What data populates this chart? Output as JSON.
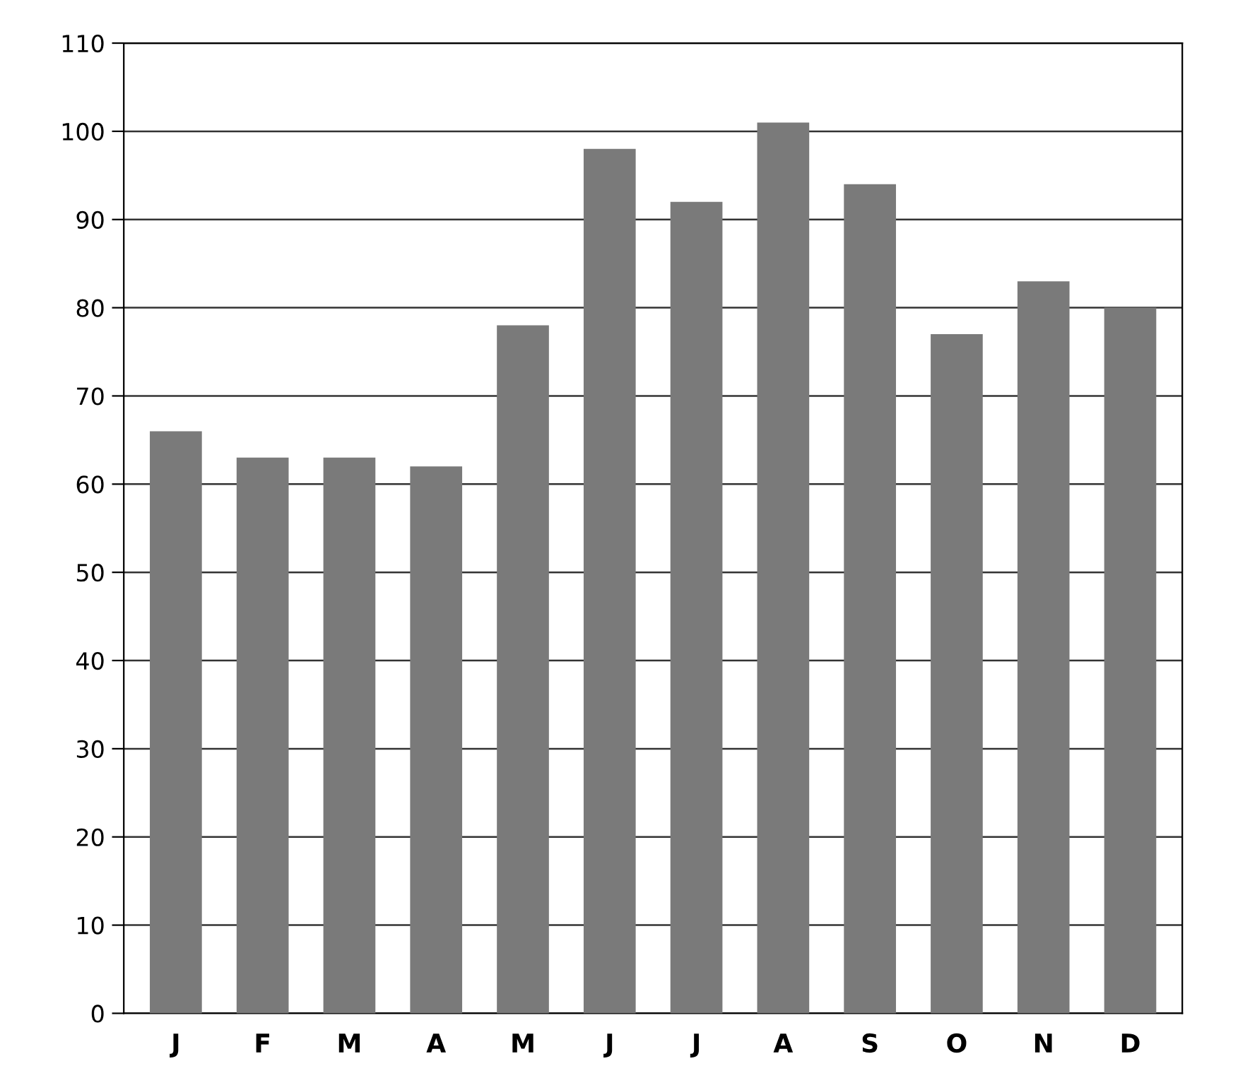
{
  "chart_data": {
    "type": "bar",
    "categories": [
      "J",
      "F",
      "M",
      "A",
      "M",
      "J",
      "J",
      "A",
      "S",
      "O",
      "N",
      "D"
    ],
    "values": [
      66,
      63,
      63,
      62,
      78,
      98,
      92,
      101,
      94,
      77,
      83,
      80
    ],
    "color": "#7a7a7a",
    "ylim": [
      0,
      110
    ],
    "yticks": [
      0,
      10,
      20,
      30,
      40,
      50,
      60,
      70,
      80,
      90,
      100,
      110
    ],
    "grid": "y"
  }
}
